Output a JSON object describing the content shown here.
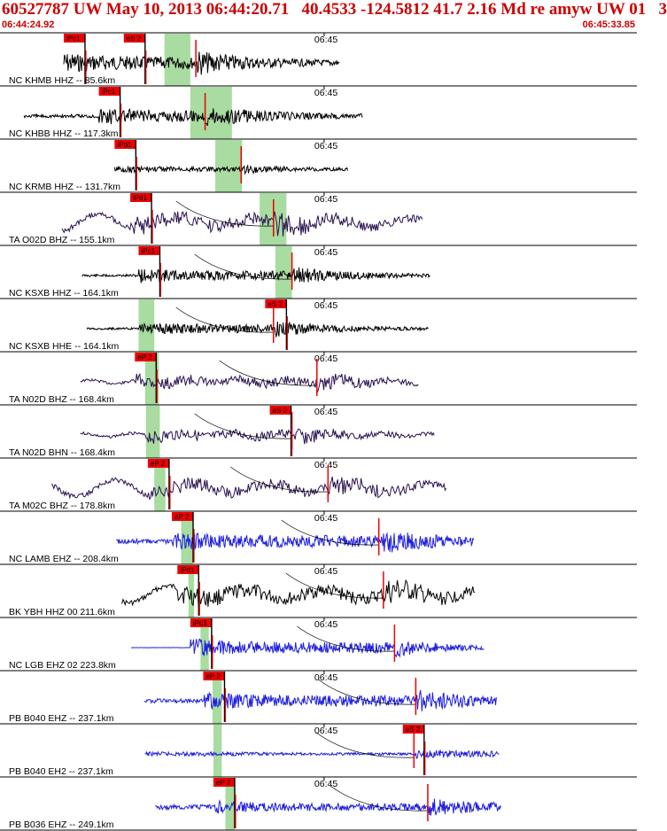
{
  "header": {
    "title": "60527787 UW May 10, 2013 06:44:20.71   40.4533 -124.5812 41.7 2.16 Md re amyw UW 01   3",
    "start_time": "06:44:24.92",
    "end_time": "06:45:33.85"
  },
  "colors": {
    "header_red": "#cc0000",
    "pick_box": "#ee0000",
    "pick_band": "#a8dca0",
    "trace_black": "#000000",
    "trace_purple": "#2a1050",
    "trace_blue": "#1f1fe0",
    "grid_line": "#000000"
  },
  "chart_data": {
    "type": "line",
    "title": "60527787 UW May 10, 2013 06:44:20.71   40.4533 -124.5812 41.7 2.16 Md re amyw UW 01   3",
    "x_range": [
      "06:44:24.92",
      "06:45:33.85"
    ],
    "minute_marker_label": "06:45",
    "minute_marker_seconds": 35.08,
    "series": [
      {
        "name": "NC KHMB HHZ -- 85.6km",
        "color": "trace_black",
        "kind": "hf",
        "start": 6.9,
        "end": 36.8,
        "p_pick": {
          "label": "iPc1",
          "t": 6.9
        },
        "s_pick": {
          "label": "eS 2",
          "t": 13.4
        },
        "band": [
          17.8,
          20.6
        ],
        "amp": 0.55,
        "tail": 0.3,
        "arrival_s": 21.2
      },
      {
        "name": "NC KHBB HHZ -- 117.3km",
        "color": "trace_black",
        "kind": "hf",
        "start": 2.6,
        "end": 39.3,
        "p_pick": {
          "label": "iPc1",
          "t": 10.7
        },
        "s_pick": null,
        "band": [
          20.6,
          25.1
        ],
        "amp": 0.5,
        "tail": 0.25,
        "arrival_s": 22.2
      },
      {
        "name": "NC KRMB HHZ -- 131.7km",
        "color": "trace_black",
        "kind": "hf",
        "start": 12.4,
        "end": 37.7,
        "p_pick": {
          "label": "iPd1",
          "t": 12.4
        },
        "s_pick": null,
        "band": [
          23.3,
          26.2
        ],
        "amp": 0.2,
        "tail": 0.12,
        "arrival_s": 26.1
      },
      {
        "name": "TA O02D BHZ -- 155.1km",
        "color": "trace_purple",
        "kind": "lf",
        "start": 6.7,
        "end": 45.7,
        "p_pick": {
          "label": "iPd1",
          "t": 14.1
        },
        "s_pick": null,
        "band": [
          28.1,
          31.0
        ],
        "amp": 0.55,
        "tail": 0.4,
        "arrival_s": 29.6
      },
      {
        "name": "NC KSXB HHZ -- 164.1km",
        "color": "trace_black",
        "kind": "hf",
        "start": 8.9,
        "end": 46.6,
        "p_pick": {
          "label": "iPc1",
          "t": 15.0
        },
        "s_pick": null,
        "band": [
          29.8,
          31.6
        ],
        "amp": 0.4,
        "tail": 0.18,
        "arrival_s": 31.6
      },
      {
        "name": "NC KSXB HHE -- 164.1km",
        "color": "trace_black",
        "kind": "hf",
        "start": 9.4,
        "end": 46.4,
        "p_pick": null,
        "s_pick": {
          "label": "eS 2",
          "t": 28.7
        },
        "band": [
          15.0,
          16.7
        ],
        "amp": 0.38,
        "tail": 0.15,
        "arrival_s": 29.6
      },
      {
        "name": "TA N02D BHZ -- 168.4km",
        "color": "trace_purple",
        "kind": "mf",
        "start": 8.7,
        "end": 45.3,
        "p_pick": {
          "label": "eP 2",
          "t": 14.6
        },
        "s_pick": null,
        "band": [
          15.7,
          17.2
        ],
        "amp": 0.42,
        "tail": 0.18,
        "arrival_s": 34.3
      },
      {
        "name": "TA N02D BHN -- 168.4km",
        "color": "trace_purple",
        "kind": "mf",
        "start": 8.7,
        "end": 47.1,
        "p_pick": null,
        "s_pick": {
          "label": "eS 2",
          "t": 29.2
        },
        "band": [
          15.8,
          17.3
        ],
        "amp": 0.4,
        "tail": 0.2,
        "arrival_s": 31.6
      },
      {
        "name": "TA M02C BHZ -- 178.8km",
        "color": "trace_purple",
        "kind": "lf",
        "start": 5.6,
        "end": 48.3,
        "p_pick": {
          "label": "eP 2",
          "t": 16.0
        },
        "s_pick": null,
        "band": [
          16.7,
          17.9
        ],
        "amp": 0.5,
        "tail": 0.35,
        "arrival_s": 35.5
      },
      {
        "name": "NC LAMB EHZ -- 208.4km",
        "color": "trace_blue",
        "kind": "hf",
        "start": 12.6,
        "end": 51.3,
        "p_pick": {
          "label": "eP 2",
          "t": 18.6
        },
        "s_pick": null,
        "band": [
          19.6,
          20.9
        ],
        "amp": 0.55,
        "tail": 0.35,
        "arrival_s": 41.0
      },
      {
        "name": "BK YBH HHZ 00 211.6km",
        "color": "trace_black",
        "kind": "lf",
        "start": 13.2,
        "end": 51.5,
        "p_pick": {
          "label": "iPd1",
          "t": 19.2
        },
        "s_pick": null,
        "band": [
          20.4,
          21.0
        ],
        "amp": 0.6,
        "tail": 0.4,
        "arrival_s": 41.5
      },
      {
        "name": "NC LGB EHZ 02 223.8km",
        "color": "trace_blue",
        "kind": "hf",
        "start": 14.2,
        "end": 52.4,
        "p_pick": {
          "label": "iPd1",
          "t": 20.6
        },
        "s_pick": null,
        "band": [
          21.7,
          22.6
        ],
        "amp": 0.5,
        "tail": 0.02,
        "arrival_s": 42.7
      },
      {
        "name": "PB B040 EHZ -- 237.1km",
        "color": "trace_blue",
        "kind": "hf",
        "start": 15.6,
        "end": 53.8,
        "p_pick": {
          "label": "eP 2",
          "t": 22.0
        },
        "s_pick": null,
        "band": [
          23.0,
          24.0
        ],
        "amp": 0.5,
        "tail": 0.3,
        "arrival_s": 45.0
      },
      {
        "name": "PB B040 EH2 -- 237.1km",
        "color": "trace_blue",
        "kind": "hf",
        "start": 15.7,
        "end": 54.0,
        "p_pick": null,
        "s_pick": {
          "label": "eS 2",
          "t": 43.6
        },
        "band": [
          23.1,
          24.0
        ],
        "amp": 0.12,
        "tail": 0.3,
        "arrival_s": 44.8
      },
      {
        "name": "PB B036 EHZ -- 249.1km",
        "color": "trace_blue",
        "kind": "hf",
        "start": 16.8,
        "end": 54.3,
        "p_pick": {
          "label": "eP 2",
          "t": 23.1
        },
        "s_pick": null,
        "band": [
          24.4,
          25.4
        ],
        "amp": 0.35,
        "tail": 0.35,
        "arrival_s": 46.3
      }
    ]
  }
}
